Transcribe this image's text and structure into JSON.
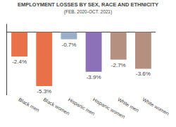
{
  "chart_data": {
    "type": "bar",
    "title": "EMPLOYMENT LOSSES BY SEX, RACE AND ETHNICITY",
    "subtitle": "(FEB. 2020-OCT. 2021)",
    "categories": [
      "Black men",
      "Black women",
      "Hispanic men",
      "Hispanic women",
      "White men",
      "White women"
    ],
    "values": [
      -2.4,
      -5.3,
      -0.7,
      -3.9,
      -2.7,
      -3.6
    ],
    "value_labels": [
      "-2.4%",
      "-5.3%",
      "-0.7%",
      "-3.9%",
      "-2.7%",
      "-3.6%"
    ],
    "colors": [
      "#E8714A",
      "#E8714A",
      "#9BAEC8",
      "#8B72B8",
      "#B59080",
      "#B59080"
    ],
    "ylim": [
      -6.2,
      0.8
    ],
    "data_labels": true,
    "grid": false,
    "tick_labels": "x"
  }
}
